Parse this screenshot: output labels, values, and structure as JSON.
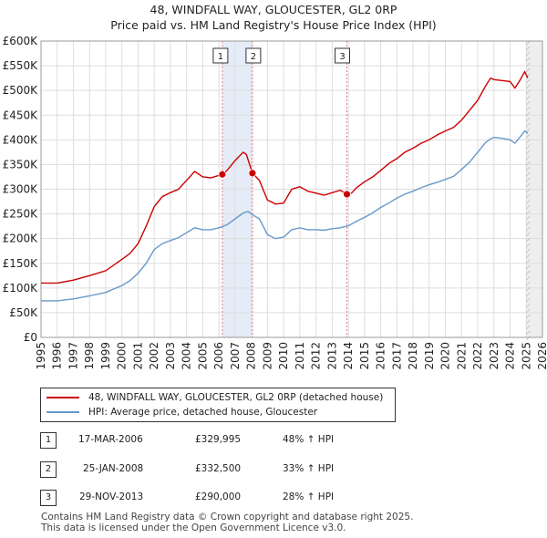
{
  "title_line1": "48, WINDFALL WAY, GLOUCESTER, GL2 0RP",
  "title_line2": "Price paid vs. HM Land Registry's House Price Index (HPI)",
  "chart_data": {
    "type": "line",
    "title": "48, WINDFALL WAY, GLOUCESTER, GL2 0RP — Price paid vs. HM Land Registry's House Price Index (HPI)",
    "xlabel": "",
    "ylabel": "",
    "xlim": [
      1995,
      2026
    ],
    "ylim": [
      0,
      600000
    ],
    "x_ticks": [
      1995,
      1996,
      1997,
      1998,
      1999,
      2000,
      2001,
      2002,
      2003,
      2004,
      2005,
      2006,
      2007,
      2008,
      2009,
      2010,
      2011,
      2012,
      2013,
      2014,
      2015,
      2016,
      2017,
      2018,
      2019,
      2020,
      2021,
      2022,
      2023,
      2024,
      2025,
      2026
    ],
    "y_ticks": [
      {
        "value": 0,
        "label": "£0"
      },
      {
        "value": 50000,
        "label": "£50K"
      },
      {
        "value": 100000,
        "label": "£100K"
      },
      {
        "value": 150000,
        "label": "£150K"
      },
      {
        "value": 200000,
        "label": "£200K"
      },
      {
        "value": 250000,
        "label": "£250K"
      },
      {
        "value": 300000,
        "label": "£300K"
      },
      {
        "value": 350000,
        "label": "£350K"
      },
      {
        "value": 400000,
        "label": "£400K"
      },
      {
        "value": 450000,
        "label": "£450K"
      },
      {
        "value": 500000,
        "label": "£500K"
      },
      {
        "value": 550000,
        "label": "£550K"
      },
      {
        "value": 600000,
        "label": "£600K"
      }
    ],
    "grid": true,
    "shaded_ranges": [
      [
        2006.21,
        2008.07
      ],
      [
        2025.0,
        2026.0
      ]
    ],
    "series": [
      {
        "name": "48, WINDFALL WAY, GLOUCESTER, GL2 0RP (detached house)",
        "color": "#cc0000",
        "points": [
          [
            1995,
            110000
          ],
          [
            1996,
            110000
          ],
          [
            1997,
            116000
          ],
          [
            1998,
            125000
          ],
          [
            1999,
            135000
          ],
          [
            2000,
            158000
          ],
          [
            2000.5,
            170000
          ],
          [
            2001,
            190000
          ],
          [
            2001.5,
            225000
          ],
          [
            2002,
            265000
          ],
          [
            2002.5,
            285000
          ],
          [
            2003,
            293000
          ],
          [
            2003.5,
            300000
          ],
          [
            2004,
            318000
          ],
          [
            2004.5,
            336000
          ],
          [
            2005,
            325000
          ],
          [
            2005.5,
            323000
          ],
          [
            2006,
            328000
          ],
          [
            2006.21,
            329995
          ],
          [
            2006.5,
            338000
          ],
          [
            2007,
            358000
          ],
          [
            2007.5,
            375000
          ],
          [
            2007.7,
            370000
          ],
          [
            2008.07,
            332500
          ],
          [
            2008.5,
            318000
          ],
          [
            2009,
            278000
          ],
          [
            2009.5,
            270000
          ],
          [
            2010,
            272000
          ],
          [
            2010.5,
            300000
          ],
          [
            2011,
            305000
          ],
          [
            2011.5,
            296000
          ],
          [
            2012,
            292000
          ],
          [
            2012.5,
            288000
          ],
          [
            2013,
            293000
          ],
          [
            2013.5,
            298000
          ],
          [
            2013.91,
            290000
          ],
          [
            2014.2,
            292000
          ],
          [
            2014.5,
            303000
          ],
          [
            2015,
            315000
          ],
          [
            2015.5,
            325000
          ],
          [
            2016,
            338000
          ],
          [
            2016.5,
            352000
          ],
          [
            2017,
            362000
          ],
          [
            2017.5,
            375000
          ],
          [
            2018,
            383000
          ],
          [
            2018.5,
            393000
          ],
          [
            2019,
            400000
          ],
          [
            2019.5,
            410000
          ],
          [
            2020,
            418000
          ],
          [
            2020.5,
            425000
          ],
          [
            2021,
            440000
          ],
          [
            2021.5,
            460000
          ],
          [
            2022,
            480000
          ],
          [
            2022.5,
            510000
          ],
          [
            2022.8,
            525000
          ],
          [
            2023,
            522000
          ],
          [
            2023.5,
            520000
          ],
          [
            2024,
            518000
          ],
          [
            2024.3,
            505000
          ],
          [
            2024.6,
            520000
          ],
          [
            2024.9,
            538000
          ],
          [
            2025.1,
            525000
          ]
        ]
      },
      {
        "name": "HPI: Average price, detached house, Gloucester",
        "color": "#6699cc",
        "points": [
          [
            1995,
            74000
          ],
          [
            1996,
            74000
          ],
          [
            1997,
            78000
          ],
          [
            1998,
            84000
          ],
          [
            1999,
            91000
          ],
          [
            2000,
            105000
          ],
          [
            2000.5,
            115000
          ],
          [
            2001,
            130000
          ],
          [
            2001.5,
            150000
          ],
          [
            2002,
            178000
          ],
          [
            2002.5,
            190000
          ],
          [
            2003,
            196000
          ],
          [
            2003.5,
            202000
          ],
          [
            2004,
            212000
          ],
          [
            2004.5,
            222000
          ],
          [
            2005,
            218000
          ],
          [
            2005.5,
            218000
          ],
          [
            2006,
            222000
          ],
          [
            2006.5,
            228000
          ],
          [
            2007,
            240000
          ],
          [
            2007.5,
            252000
          ],
          [
            2007.8,
            255000
          ],
          [
            2008,
            250000
          ],
          [
            2008.5,
            240000
          ],
          [
            2009,
            208000
          ],
          [
            2009.5,
            200000
          ],
          [
            2010,
            203000
          ],
          [
            2010.5,
            218000
          ],
          [
            2011,
            222000
          ],
          [
            2011.5,
            218000
          ],
          [
            2012,
            218000
          ],
          [
            2012.5,
            217000
          ],
          [
            2013,
            220000
          ],
          [
            2013.5,
            222000
          ],
          [
            2014,
            226000
          ],
          [
            2014.5,
            235000
          ],
          [
            2015,
            243000
          ],
          [
            2015.5,
            252000
          ],
          [
            2016,
            263000
          ],
          [
            2016.5,
            272000
          ],
          [
            2017,
            282000
          ],
          [
            2017.5,
            290000
          ],
          [
            2018,
            296000
          ],
          [
            2018.5,
            303000
          ],
          [
            2019,
            309000
          ],
          [
            2019.5,
            314000
          ],
          [
            2020,
            320000
          ],
          [
            2020.5,
            326000
          ],
          [
            2021,
            340000
          ],
          [
            2021.5,
            355000
          ],
          [
            2022,
            375000
          ],
          [
            2022.5,
            395000
          ],
          [
            2022.8,
            402000
          ],
          [
            2023,
            405000
          ],
          [
            2023.5,
            403000
          ],
          [
            2024,
            400000
          ],
          [
            2024.3,
            393000
          ],
          [
            2024.6,
            405000
          ],
          [
            2024.9,
            418000
          ],
          [
            2025.1,
            413000
          ]
        ]
      }
    ],
    "sales": [
      {
        "label": "1",
        "date": "17-MAR-2006",
        "x": 2006.21,
        "price": 329995
      },
      {
        "label": "2",
        "date": "25-JAN-2008",
        "x": 2008.07,
        "price": 332500
      },
      {
        "label": "3",
        "date": "29-NOV-2013",
        "x": 2013.91,
        "price": 290000
      }
    ]
  },
  "legend": {
    "property_label": "48, WINDFALL WAY, GLOUCESTER, GL2 0RP (detached house)",
    "hpi_label": "HPI: Average price, detached house, Gloucester",
    "property_color": "#cc0000",
    "hpi_color": "#6699cc"
  },
  "sales_table": [
    {
      "num": "1",
      "date": "17-MAR-2006",
      "price": "£329,995",
      "hpi": "48% ↑ HPI"
    },
    {
      "num": "2",
      "date": "25-JAN-2008",
      "price": "£332,500",
      "hpi": "33% ↑ HPI"
    },
    {
      "num": "3",
      "date": "29-NOV-2013",
      "price": "£290,000",
      "hpi": "28% ↑ HPI"
    }
  ],
  "footer": {
    "line1": "Contains HM Land Registry data © Crown copyright and database right 2025.",
    "line2": "This data is licensed under the Open Government Licence v3.0."
  }
}
